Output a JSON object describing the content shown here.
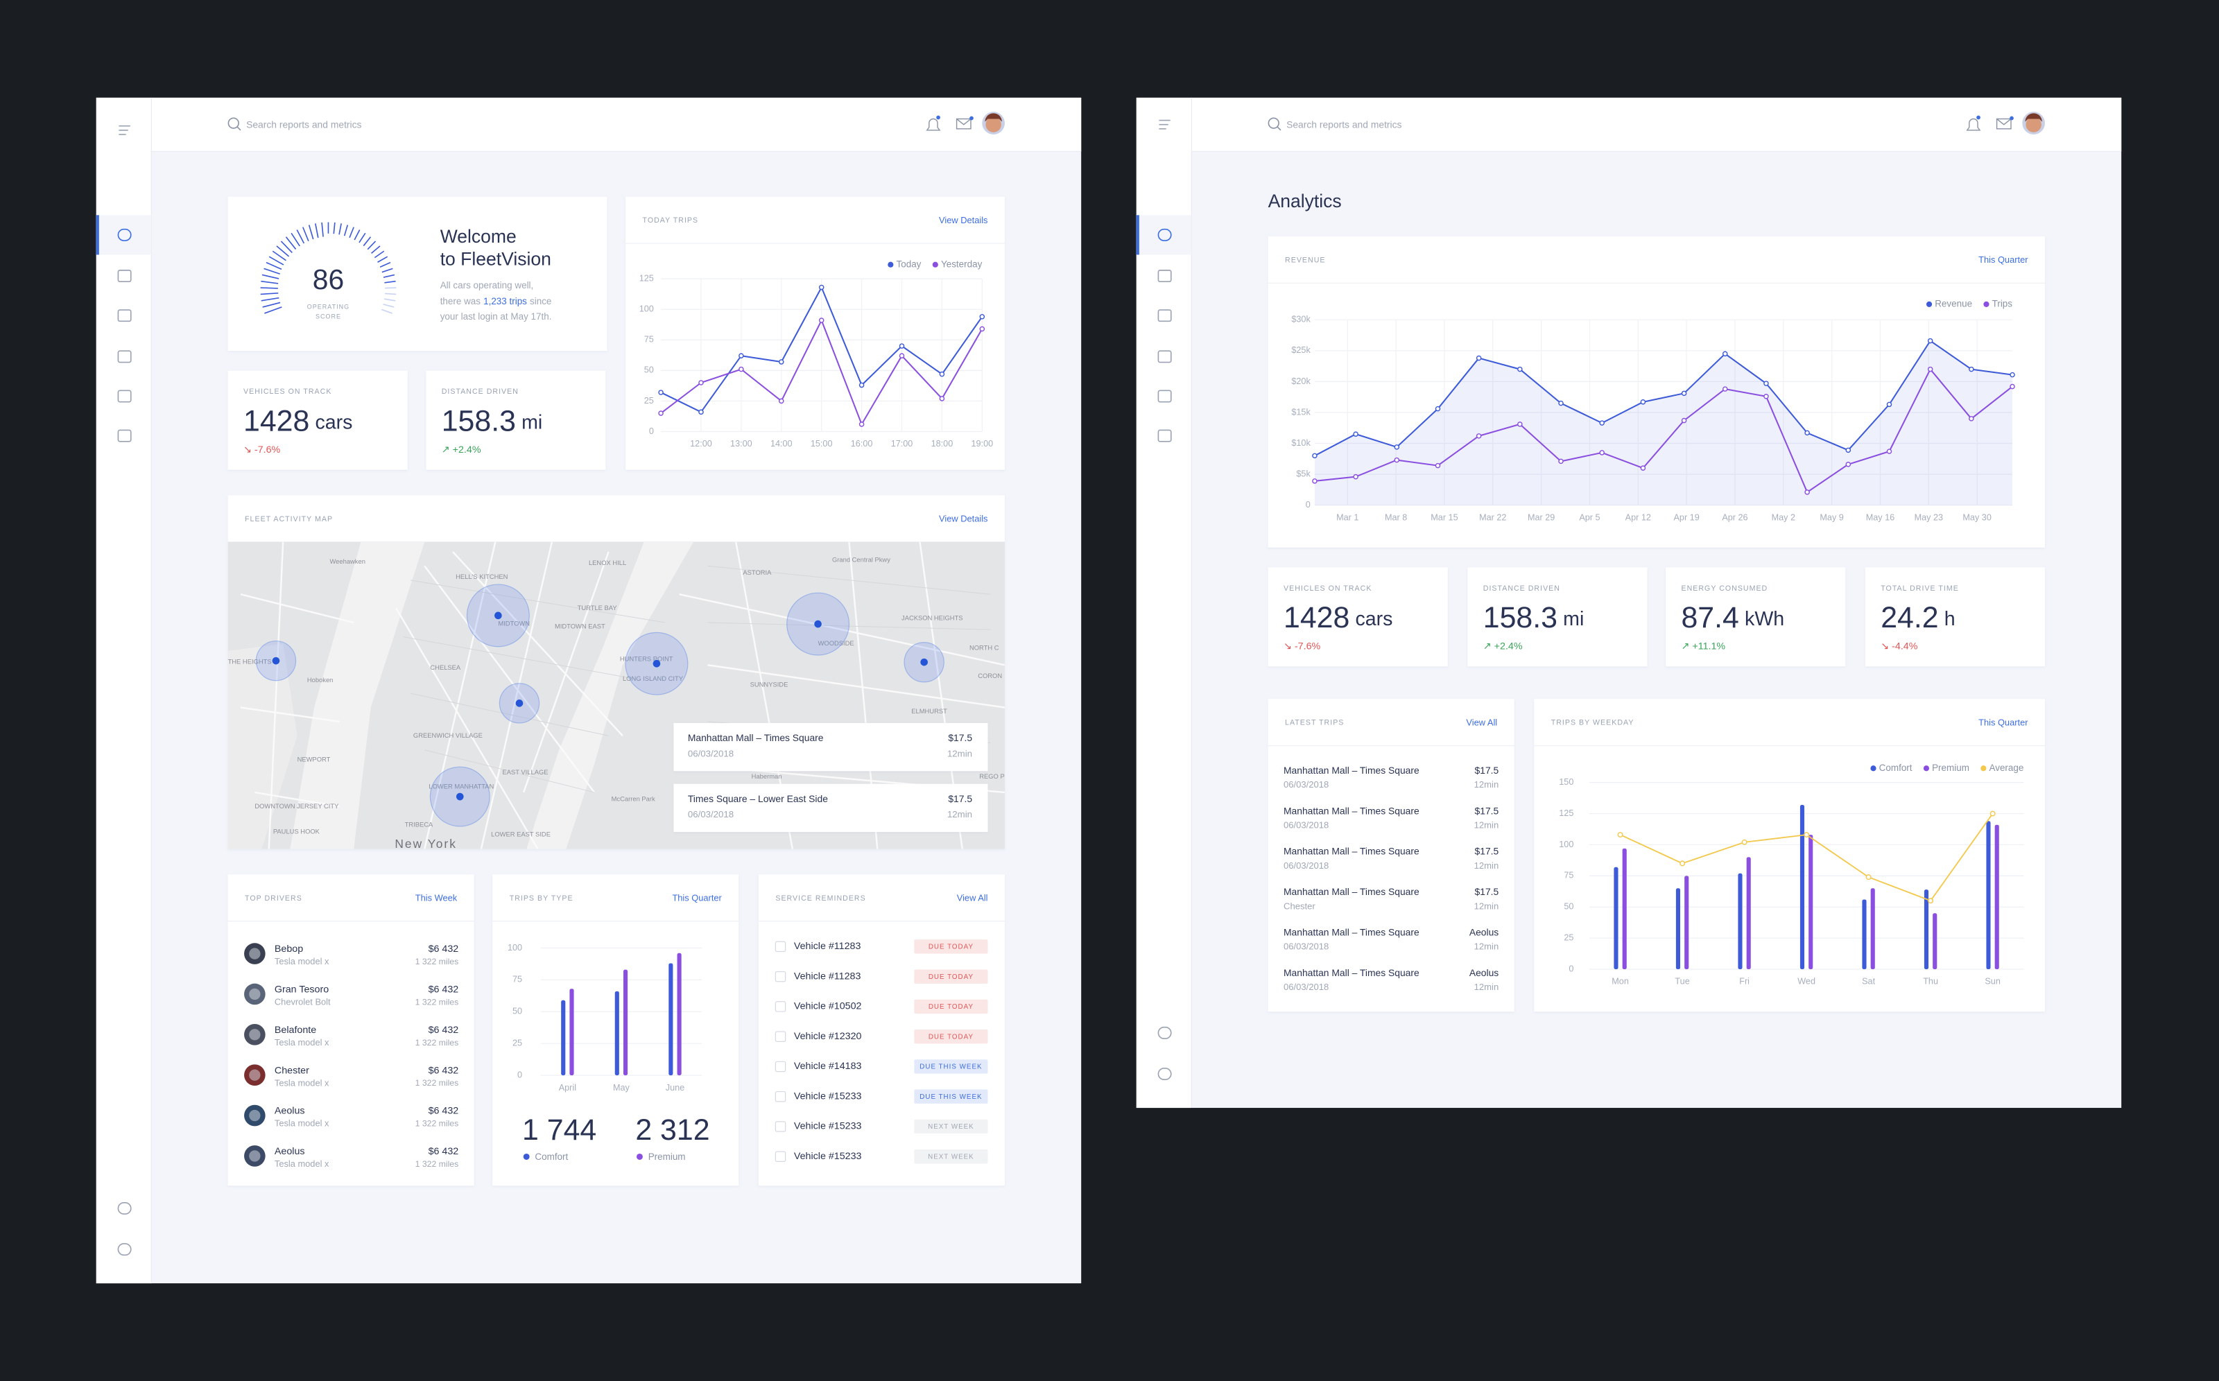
{
  "left": {
    "search": "Search reports and metrics",
    "welcome": {
      "score": 86,
      "score_label": [
        "OPERATING",
        "SCORE"
      ],
      "title": [
        "Welcome",
        "to FleetVision"
      ],
      "message": [
        "All cars operating well,",
        "there was",
        "1,233 trips",
        "since",
        "your last login at May 17th."
      ]
    },
    "stats": [
      {
        "label": "VEHICLES ON TRACK",
        "value": 1428,
        "unit": "cars",
        "change": "↘ -7.6%",
        "color": "#e25555"
      },
      {
        "label": "DISTANCE DRIVEN",
        "value": 158.3,
        "unit": "mi",
        "change": "↗ +2.4%",
        "color": "#3aa55a"
      }
    ],
    "today_trips": {
      "title": "TODAY TRIPS",
      "link": "View Details",
      "chart": {
        "type": "line",
        "categories": [
          null,
          "12:00",
          "13:00",
          "14:00",
          "15:00",
          "16:00",
          "17:00",
          "18:00",
          "19:00"
        ],
        "series": [
          {
            "name": "Today",
            "color": "#3d5bd9",
            "values": [
              32,
              16,
              62,
              57,
              118,
              38,
              70,
              47,
              94
            ]
          },
          {
            "name": "Yesterday",
            "color": "#8a4fe0",
            "values": [
              15,
              40,
              51,
              25,
              91,
              6,
              62,
              27,
              84
            ]
          }
        ],
        "ylim": [
          0,
          125
        ],
        "yticks": [
          0,
          25,
          50,
          75,
          100,
          125
        ],
        "grid": true,
        "xgrid": true,
        "legend": "top-right"
      }
    },
    "map": {
      "title": "FLEET ACTIVITY MAP",
      "link": "View Details",
      "labels": [
        "Weehawken",
        "LENOX HILL",
        "HELL'S KITCHEN",
        "MIDTOWN",
        "MIDTOWN EAST",
        "TURTLE BAY",
        "ASTORIA",
        "Grand Central Pkwy",
        "JACKSON HEIGHTS",
        "THE HEIGHTS",
        "Hoboken",
        "CHELSEA",
        "HUNTERS POINT",
        "LONG ISLAND CITY",
        "WOODSIDE",
        "SUNNYSIDE",
        "ELMHURST",
        "NORTH C",
        "CORON",
        "GREENWICH VILLAGE",
        "NEWPORT",
        "EAST VILLAGE",
        "LOWER MANHATTAN",
        "DOWNTOWN JERSEY CITY",
        "TRIBECA",
        "PAULUS HOOK",
        "LOWER EAST SIDE",
        "New York",
        "McCarren Park",
        "Haberman",
        "REGO P"
      ],
      "trips": [
        {
          "route": "Manhattan Mall – Times Square",
          "date": "06/03/2018",
          "price": "$17.5",
          "duration": "12min"
        },
        {
          "route": "Times Square – Lower East Side",
          "date": "06/03/2018",
          "price": "$17.5",
          "duration": "12min"
        }
      ]
    },
    "top_drivers": {
      "title": "TOP DRIVERS",
      "link": "This Week",
      "rows": [
        {
          "name": "Bebop",
          "car": "Tesla model x",
          "amount": "$6 432",
          "miles": "1 322 miles"
        },
        {
          "name": "Gran Tesoro",
          "car": "Chevrolet Bolt",
          "amount": "$6 432",
          "miles": "1 322 miles"
        },
        {
          "name": "Belafonte",
          "car": "Tesla model x",
          "amount": "$6 432",
          "miles": "1 322 miles"
        },
        {
          "name": "Chester",
          "car": "Tesla model x",
          "amount": "$6 432",
          "miles": "1 322 miles"
        },
        {
          "name": "Aeolus",
          "car": "Tesla model x",
          "amount": "$6 432",
          "miles": "1 322 miles"
        },
        {
          "name": "Aeolus",
          "car": "Tesla model x",
          "amount": "$6 432",
          "miles": "1 322 miles"
        }
      ]
    },
    "trips_by_type": {
      "title": "TRIPS BY TYPE",
      "link": "This Quarter",
      "chart": {
        "type": "bar",
        "categories": [
          "April",
          "May",
          "June"
        ],
        "series": [
          {
            "name": "Comfort",
            "color": "#3d5bd9",
            "values": [
              59,
              66,
              88
            ]
          },
          {
            "name": "Premium",
            "color": "#8a4fe0",
            "values": [
              68,
              83,
              96
            ]
          }
        ],
        "ylim": [
          0,
          100
        ],
        "yticks": [
          0,
          25,
          50,
          75,
          100
        ],
        "grid": true,
        "legend": "bottom"
      },
      "totals": [
        "1 744",
        "2 312"
      ]
    },
    "service_reminders": {
      "title": "SERVICE REMINDERS",
      "link": "View All",
      "rows": [
        {
          "vehicle": "Vehicle #11283",
          "status": "DUE TODAY",
          "color": "#e25555"
        },
        {
          "vehicle": "Vehicle #11283",
          "status": "DUE TODAY",
          "color": "#e25555"
        },
        {
          "vehicle": "Vehicle #10502",
          "status": "DUE TODAY",
          "color": "#e25555"
        },
        {
          "vehicle": "Vehicle #12320",
          "status": "DUE TODAY",
          "color": "#e25555"
        },
        {
          "vehicle": "Vehicle #14183",
          "status": "DUE THIS WEEK",
          "color": "#3d6ee0"
        },
        {
          "vehicle": "Vehicle #15233",
          "status": "DUE THIS WEEK",
          "color": "#3d6ee0"
        },
        {
          "vehicle": "Vehicle #15233",
          "status": "NEXT WEEK",
          "color": "#a0a6b4"
        },
        {
          "vehicle": "Vehicle #15233",
          "status": "NEXT WEEK",
          "color": "#a0a6b4"
        }
      ]
    }
  },
  "right": {
    "search": "Search reports and metrics",
    "title": "Analytics",
    "revenue": {
      "title": "REVENUE",
      "link": "This Quarter",
      "chart": {
        "type": "line",
        "xlim": [
          0,
          17
        ],
        "xticks": [
          {
            "value": 0.8,
            "label": "Mar 1"
          },
          {
            "value": 1.98,
            "label": "Mar 8"
          },
          {
            "value": 3.16,
            "label": "Mar 15"
          },
          {
            "value": 4.34,
            "label": "Mar 22"
          },
          {
            "value": 5.52,
            "label": "Mar 29"
          },
          {
            "value": 6.7,
            "label": "Apr 5"
          },
          {
            "value": 7.88,
            "label": "Apr 12"
          },
          {
            "value": 9.06,
            "label": "Apr 19"
          },
          {
            "value": 10.24,
            "label": "Apr 26"
          },
          {
            "value": 11.42,
            "label": "May 2"
          },
          {
            "value": 12.6,
            "label": "May 9"
          },
          {
            "value": 13.78,
            "label": "May 16"
          },
          {
            "value": 14.96,
            "label": "May 23"
          },
          {
            "value": 16.14,
            "label": "May 30"
          }
        ],
        "series": [
          {
            "name": "Revenue",
            "color": "#3d5bd9",
            "area": true,
            "values": [
              8000,
              11500,
              9400,
              15600,
              23800,
              22000,
              16500,
              13300,
              16700,
              18100,
              24500,
              19700,
              11700,
              8900,
              16300,
              26600,
              22000,
              21100
            ]
          },
          {
            "name": "Trips",
            "color": "#8a4fe0",
            "values": [
              3900,
              4600,
              7300,
              6400,
              11200,
              13100,
              7100,
              8500,
              6000,
              13700,
              18800,
              17600,
              2100,
              6600,
              8700,
              22000,
              14000,
              19200
            ]
          }
        ],
        "ylim": [
          0,
          30000
        ],
        "yticks": [
          0,
          {
            "value": 5000,
            "label": "$5k"
          },
          {
            "value": 10000,
            "label": "$10k"
          },
          {
            "value": 15000,
            "label": "$15k"
          },
          {
            "value": 20000,
            "label": "$20k"
          },
          {
            "value": 25000,
            "label": "$25k"
          },
          {
            "value": 30000,
            "label": "$30k"
          }
        ],
        "grid": true,
        "xgrid": true,
        "legend": "top-right"
      }
    },
    "stats": [
      {
        "label": "VEHICLES ON TRACK",
        "value": 1428,
        "unit": "cars",
        "change": "↘ -7.6%",
        "color": "#e25555"
      },
      {
        "label": "DISTANCE DRIVEN",
        "value": 158.3,
        "unit": "mi",
        "change": "↗ +2.4%",
        "color": "#3aa55a"
      },
      {
        "label": "ENERGY CONSUMED",
        "value": 87.4,
        "unit": "kWh",
        "change": "↗ +11.1%",
        "color": "#3aa55a"
      },
      {
        "label": "TOTAL DRIVE TIME",
        "value": 24.2,
        "unit": "h",
        "change": "↘ -4.4%",
        "color": "#e25555"
      }
    ],
    "latest_trips": {
      "title": "LATEST TRIPS",
      "link": "View All",
      "rows": [
        [
          "Manhattan Mall – Times Square",
          "06/03/2018",
          "$17.5",
          "12min"
        ],
        [
          "Manhattan Mall – Times Square",
          "06/03/2018",
          "$17.5",
          "12min"
        ],
        [
          "Manhattan Mall – Times Square",
          "06/03/2018",
          "$17.5",
          "12min"
        ],
        [
          "Manhattan Mall – Times Square",
          "Chester",
          "$17.5",
          "12min"
        ],
        [
          "Manhattan Mall – Times Square",
          "06/03/2018",
          "Aeolus",
          "12min"
        ],
        [
          "Manhattan Mall – Times Square",
          "06/03/2018",
          "Aeolus",
          "12min"
        ]
      ]
    },
    "trips_by_weekday": {
      "title": "TRIPS BY WEEKDAY",
      "link": "This Quarter",
      "chart": {
        "type": "bar",
        "categories": [
          "Mon",
          "Tue",
          "Fri",
          "Wed",
          "Sat",
          "Thu",
          "Sun"
        ],
        "series": [
          {
            "name": "Comfort",
            "color": "#3d5bd9",
            "values": [
              82,
              65,
              77,
              132,
              56,
              64,
              119
            ]
          },
          {
            "name": "Premium",
            "color": "#8a4fe0",
            "values": [
              97,
              75,
              90,
              108,
              65,
              45,
              116
            ]
          },
          {
            "name": "Average",
            "type": "line",
            "color": "#f2c94c",
            "values": [
              108,
              85,
              102,
              108,
              74,
              55,
              125
            ]
          }
        ],
        "ylim": [
          0,
          150
        ],
        "yticks": [
          0,
          25,
          50,
          75,
          100,
          125,
          150
        ],
        "grid": true,
        "legend": "top-right"
      }
    }
  }
}
